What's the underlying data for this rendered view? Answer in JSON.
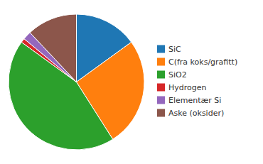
{
  "chart_data": {
    "type": "pie",
    "categories": [
      "SiC",
      "C(fra koks/grafitt)",
      "SiO2",
      "Hydrogen",
      "Elementær Si",
      "Aske (oksider)"
    ],
    "values": [
      15,
      26,
      44,
      1,
      2,
      12
    ],
    "legend": "right"
  }
}
